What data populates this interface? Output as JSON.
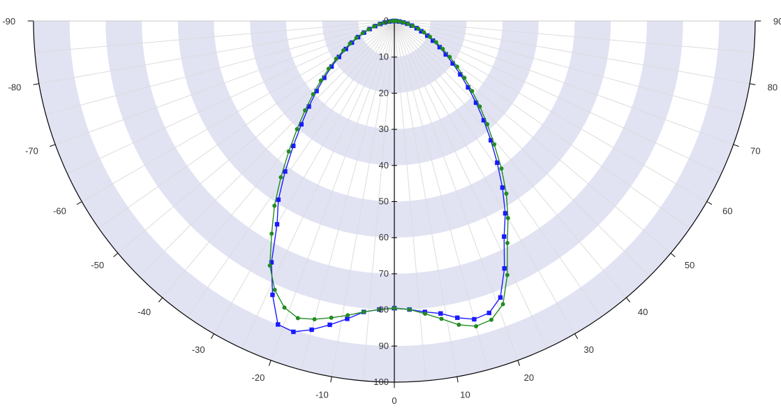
{
  "chart_data": {
    "type": "polar-line",
    "title": "",
    "angle_range": [
      -90,
      90
    ],
    "radius_range": [
      0,
      100
    ],
    "radial_ticks": [
      0,
      10,
      20,
      30,
      40,
      50,
      60,
      70,
      80,
      90,
      100
    ],
    "angle_ticks": [
      -90,
      -80,
      -70,
      -60,
      -50,
      -40,
      -30,
      -20,
      -10,
      0,
      10,
      20,
      30,
      40,
      50,
      60,
      70,
      80,
      90
    ],
    "grid": true,
    "band_color": "#e1e3f3",
    "spoke_color": "#dcdcdc",
    "axis_color": "#000000",
    "series": [
      {
        "color": "#1a1aff",
        "marker": "square",
        "angles": [
          -90,
          -87,
          -84,
          -81,
          -78,
          -75,
          -72,
          -69,
          -66,
          -63,
          -60,
          -57,
          -54,
          -51,
          -48,
          -45,
          -42,
          -39,
          -36,
          -33,
          -30,
          -27,
          -24,
          -21,
          -18,
          -15,
          -12,
          -9,
          -6,
          -3,
          0,
          3,
          6,
          9,
          12,
          15,
          18,
          21,
          24,
          27,
          30,
          33,
          36,
          39,
          42,
          45,
          48,
          51,
          54,
          57,
          60,
          63,
          66,
          69,
          72,
          75,
          78,
          81,
          84,
          87,
          90
        ],
        "values": [
          0,
          0.4,
          1.5,
          2.7,
          4.0,
          5.5,
          7.2,
          9.0,
          11.0,
          13.2,
          15.5,
          18.3,
          21.5,
          25.0,
          29.0,
          33.5,
          38.5,
          44.5,
          51.5,
          59.0,
          65.0,
          75.0,
          83.0,
          90.0,
          90.5,
          88.5,
          86.0,
          83.5,
          81.0,
          80.0,
          79.5,
          80.0,
          81.0,
          82.0,
          84.0,
          85.5,
          85.0,
          82.0,
          75.0,
          67.0,
          61.5,
          55.0,
          48.5,
          42.5,
          37.0,
          32.0,
          27.5,
          23.5,
          20.0,
          17.0,
          14.5,
          12.0,
          10.0,
          8.0,
          6.5,
          5.0,
          3.7,
          2.5,
          1.4,
          0.4,
          0
        ]
      },
      {
        "color": "#228b22",
        "marker": "circle",
        "angles": [
          -90,
          -87,
          -84,
          -81,
          -78,
          -75,
          -72,
          -69,
          -66,
          -63,
          -60,
          -57,
          -54,
          -51,
          -48,
          -45,
          -42,
          -39,
          -36,
          -33,
          -30,
          -27,
          -24,
          -21,
          -18,
          -15,
          -12,
          -9,
          -6,
          -3,
          0,
          3,
          6,
          9,
          12,
          15,
          18,
          21,
          24,
          27,
          30,
          33,
          36,
          39,
          42,
          45,
          48,
          51,
          54,
          57,
          60,
          63,
          66,
          69,
          72,
          75,
          78,
          81,
          84,
          87,
          90
        ],
        "values": [
          0,
          0.5,
          1.6,
          2.8,
          4.2,
          5.8,
          7.5,
          9.4,
          11.5,
          13.8,
          16.3,
          19.2,
          22.5,
          26.2,
          30.3,
          35.0,
          40.3,
          46.5,
          53.5,
          61.0,
          68.0,
          76.0,
          81.5,
          85.0,
          86.5,
          85.5,
          84.0,
          82.5,
          81.0,
          80.0,
          79.5,
          80.0,
          81.5,
          83.5,
          86.0,
          87.5,
          87.0,
          84.0,
          77.0,
          69.0,
          63.0,
          57.0,
          50.5,
          44.0,
          38.5,
          33.5,
          29.0,
          25.0,
          21.5,
          18.3,
          15.5,
          13.0,
          10.8,
          8.8,
          7.0,
          5.3,
          3.9,
          2.6,
          1.5,
          0.5,
          0
        ]
      }
    ]
  }
}
